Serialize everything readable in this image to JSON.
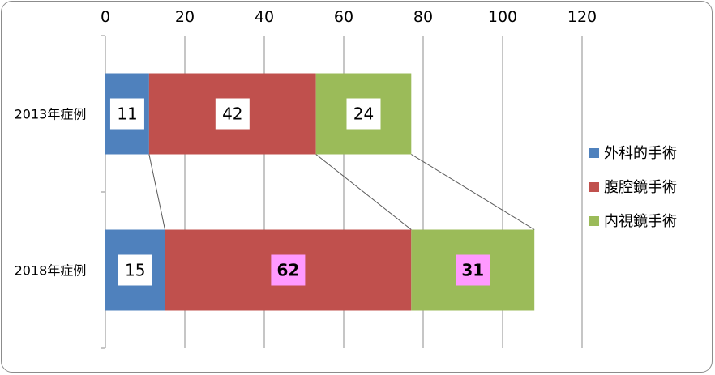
{
  "chart_data": {
    "type": "bar",
    "orientation": "horizontal",
    "stacked": true,
    "categories": [
      "2013年症例",
      "2018年症例"
    ],
    "series": [
      {
        "name": "外科的手術",
        "color": "#4f81bd",
        "values": [
          11,
          15
        ]
      },
      {
        "name": "腹腔鏡手術",
        "color": "#c0504d",
        "values": [
          42,
          62
        ]
      },
      {
        "name": "内視鏡手術",
        "color": "#9bbb59",
        "values": [
          24,
          31
        ]
      }
    ],
    "x_ticks": [
      "0",
      "20",
      "40",
      "60",
      "80",
      "100",
      "120"
    ],
    "xlim": [
      0,
      120
    ],
    "axis_position": "top",
    "grid": true,
    "series_lines": true,
    "legend_position": "right",
    "data_label_style": {
      "default_fill": "#ffffff",
      "highlight_fill": "#ff99ff",
      "highlighted": [
        [
          1,
          1
        ],
        [
          1,
          2
        ]
      ]
    },
    "title": "",
    "xlabel": "",
    "ylabel": ""
  }
}
